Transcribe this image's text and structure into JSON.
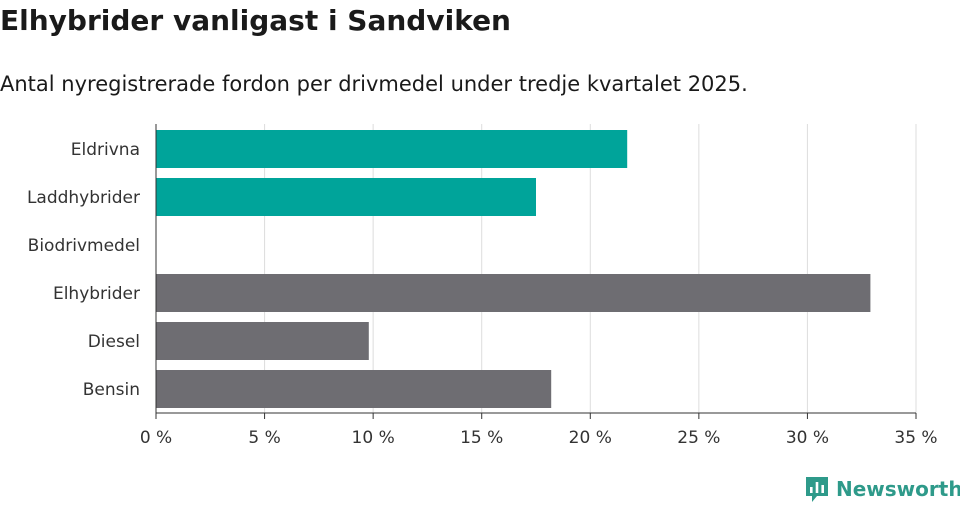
{
  "title": "Elhybrider vanligast i Sandviken",
  "subtitle": "Antal nyregistrerade fordon per drivmedel under tredje kvartalet 2025.",
  "brand": {
    "name": "Newsworthy",
    "icon": "newsworthy-logo-icon"
  },
  "colors": {
    "highlight": "#00a49a",
    "default": "#6e6d72",
    "grid": "#dddddd",
    "axis": "#333333"
  },
  "chart_data": {
    "type": "bar",
    "orientation": "horizontal",
    "categories": [
      "Eldrivna",
      "Laddhybrider",
      "Biodrivmedel",
      "Elhybrider",
      "Diesel",
      "Bensin"
    ],
    "values": [
      21.7,
      17.5,
      0,
      32.9,
      9.8,
      18.2
    ],
    "highlighted": [
      true,
      true,
      false,
      false,
      false,
      false
    ],
    "xlim": [
      0,
      35
    ],
    "xticks": [
      0,
      5,
      10,
      15,
      20,
      25,
      30,
      35
    ],
    "tick_labels": [
      "0 %",
      "5 %",
      "10 %",
      "15 %",
      "20 %",
      "25 %",
      "30 %",
      "35 %"
    ],
    "grid": true,
    "title": "Elhybrider vanligast i Sandviken",
    "xlabel": "",
    "ylabel": ""
  }
}
